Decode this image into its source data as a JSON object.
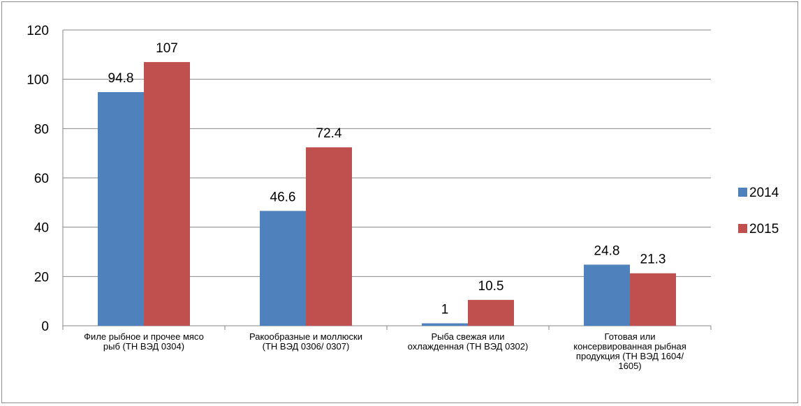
{
  "chart_data": {
    "type": "bar",
    "categories": [
      [
        "Филе рыбное и прочее мясо",
        "рыб (ТН ВЭД 0304)"
      ],
      [
        "Ракообразные и моллюски",
        "(ТН ВЭД 0306/ 0307)"
      ],
      [
        "Рыба свежая или",
        "охлажденная (ТН ВЭД 0302)"
      ],
      [
        "Готовая или",
        "консервированная рыбная",
        "продукция (ТН ВЭД 1604/",
        "1605)"
      ]
    ],
    "series": [
      {
        "name": "2014",
        "color": "#4f81bd",
        "values": [
          94.8,
          46.6,
          1,
          24.8
        ],
        "labels": [
          "94.8",
          "46.6",
          "1",
          "24.8"
        ]
      },
      {
        "name": "2015",
        "color": "#c0504d",
        "values": [
          107,
          72.4,
          10.5,
          21.3
        ],
        "labels": [
          "107",
          "72.4",
          "10.5",
          "21.3"
        ]
      }
    ],
    "ylim": [
      0,
      120
    ],
    "yticks": [
      0,
      20,
      40,
      60,
      80,
      100,
      120
    ],
    "grid": true,
    "legend": "right"
  }
}
